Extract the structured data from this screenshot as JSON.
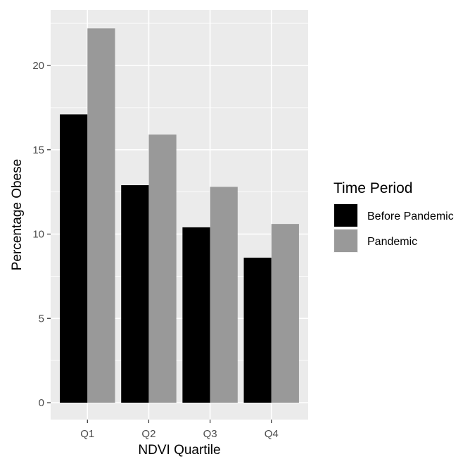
{
  "chart_data": {
    "type": "bar",
    "categories": [
      "Q1",
      "Q2",
      "Q3",
      "Q4"
    ],
    "series": [
      {
        "name": "Before Pandemic",
        "values": [
          17.1,
          12.9,
          10.4,
          8.6
        ],
        "color": "#000000"
      },
      {
        "name": "Pandemic",
        "values": [
          22.2,
          15.9,
          12.8,
          10.6
        ],
        "color": "#999999"
      }
    ],
    "title": "",
    "xlabel": "NDVI Quartile",
    "ylabel": "Percentage Obese",
    "ylim": [
      0,
      23
    ],
    "yticks": [
      0,
      5,
      10,
      15,
      20
    ],
    "grid": true,
    "legend": {
      "title": "Time Period",
      "position": "right"
    },
    "panel_background": "#ebebeb",
    "grid_color": "#ffffff"
  }
}
